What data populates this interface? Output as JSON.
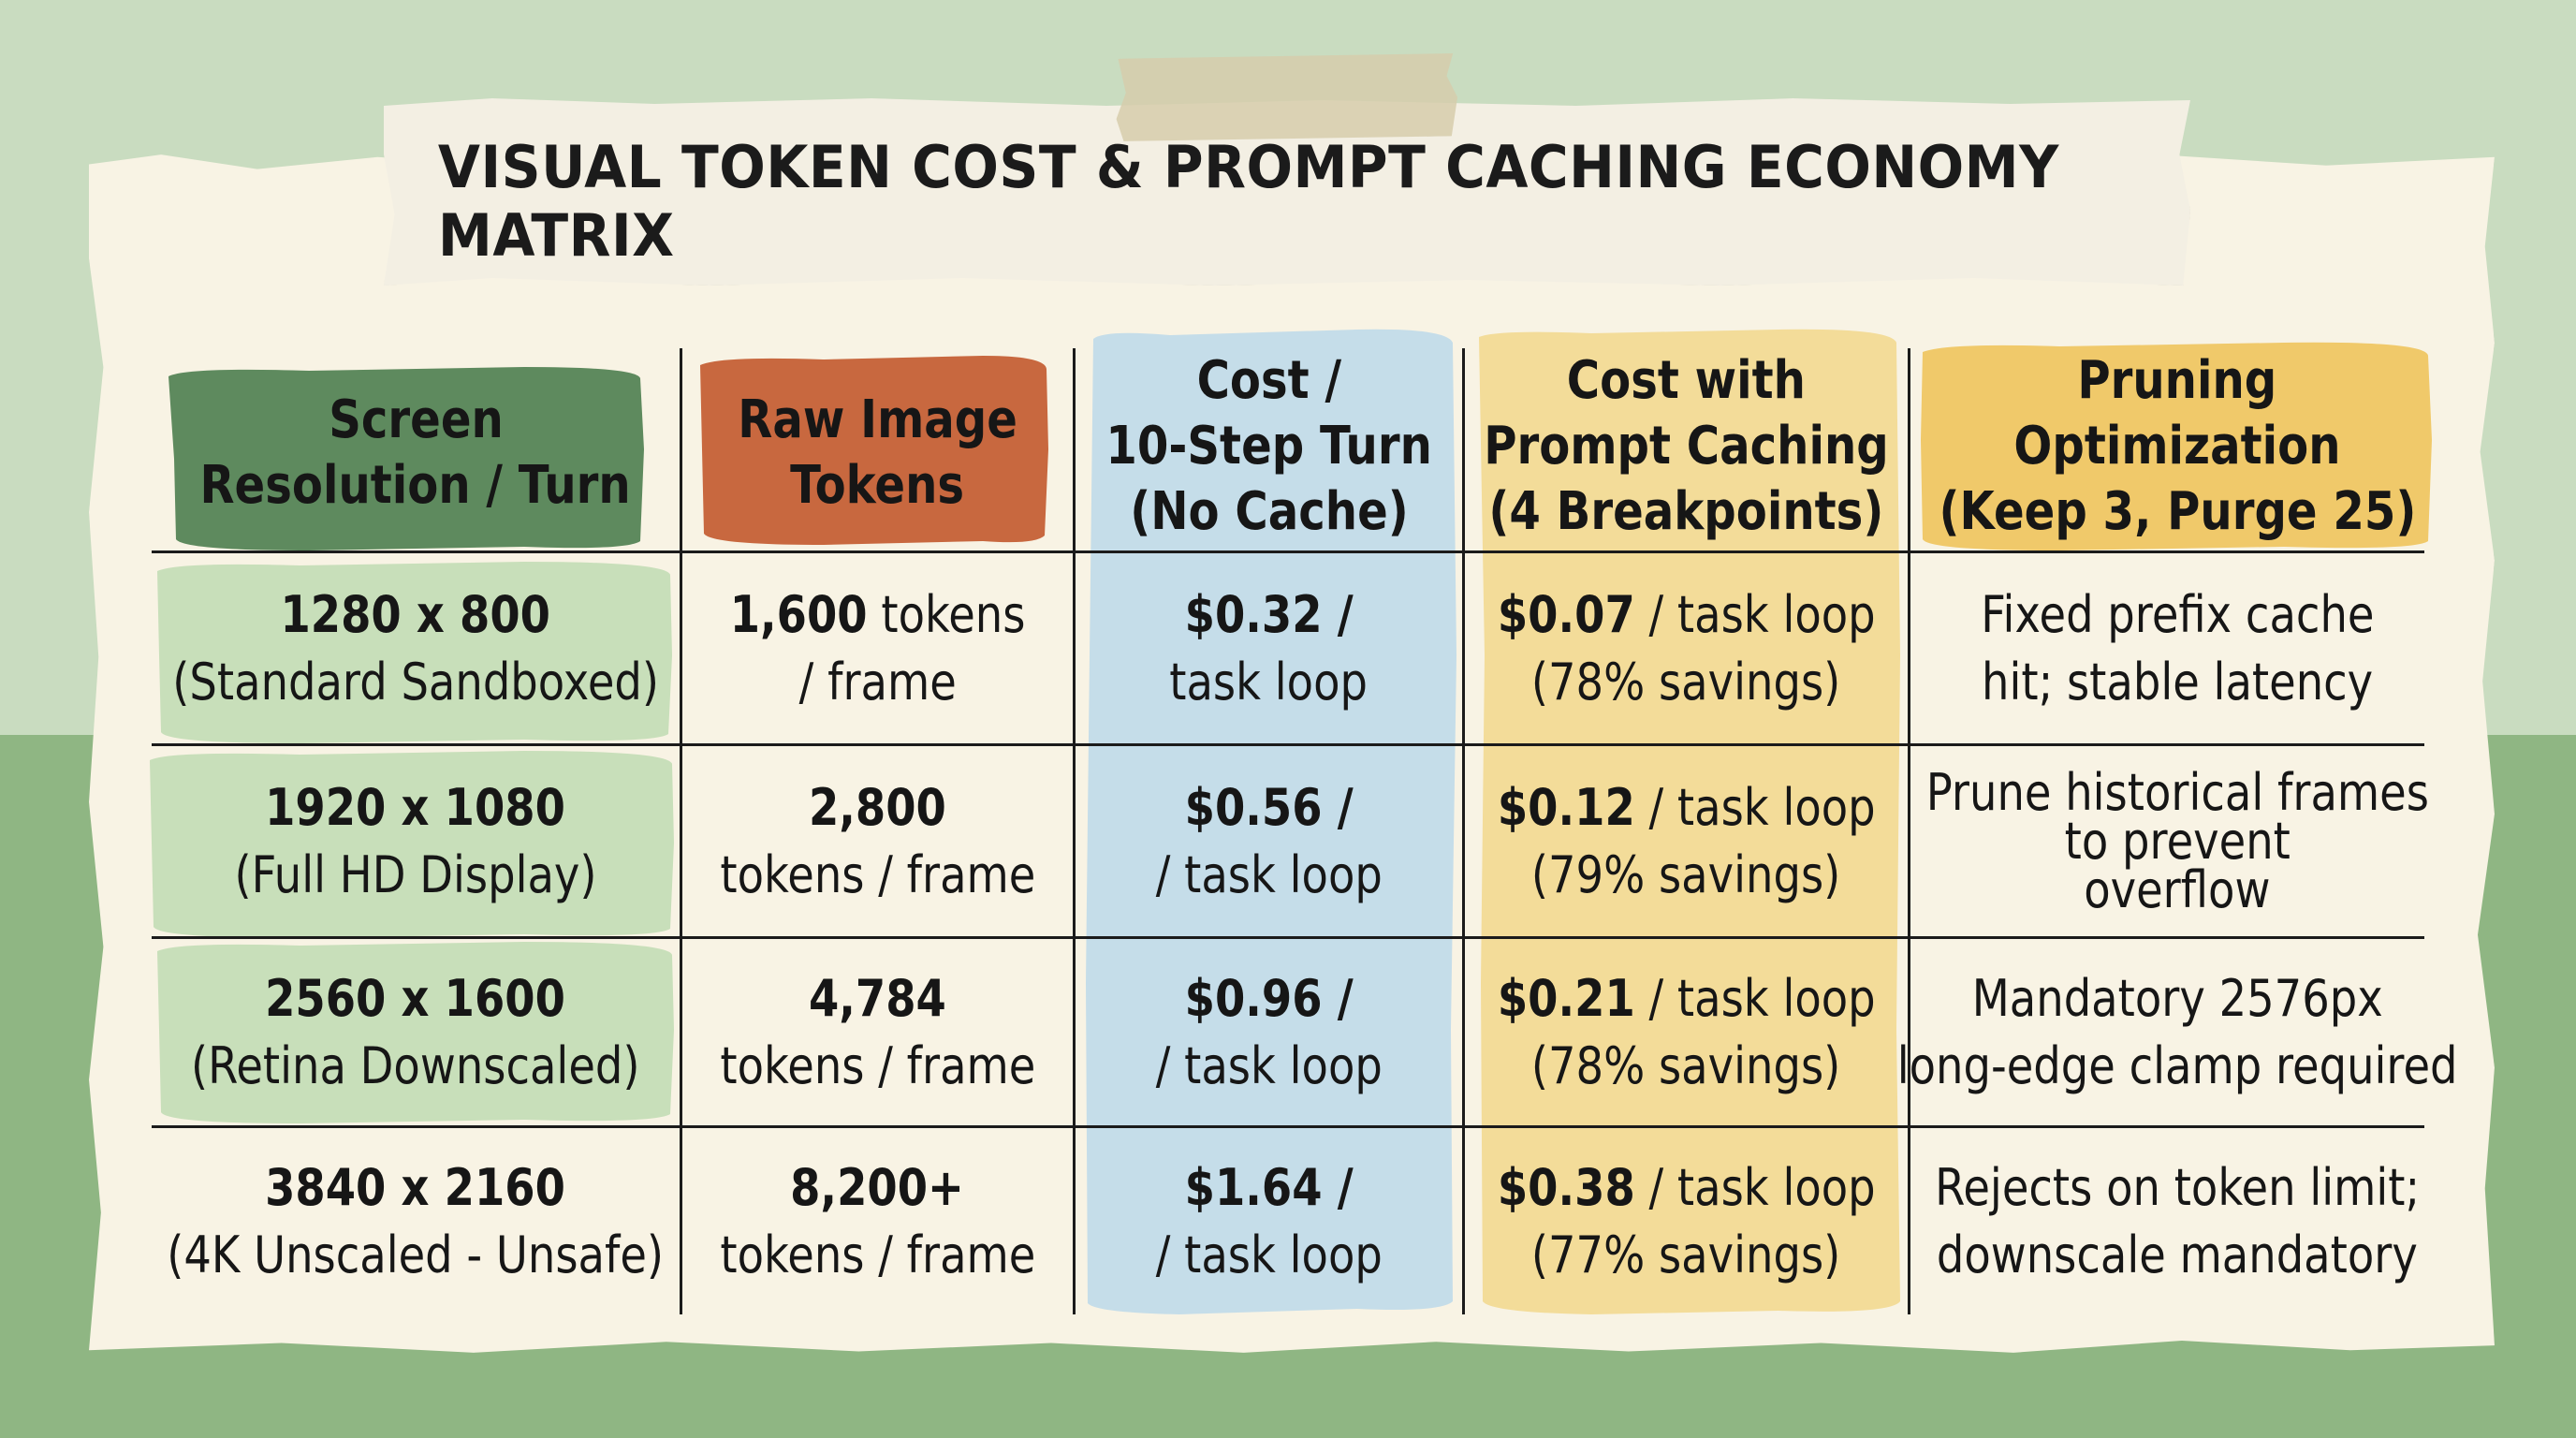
{
  "title": "VISUAL TOKEN COST & PROMPT CACHING ECONOMY MATRIX",
  "colors": {
    "background_top": "#c9dcc0",
    "background_bottom": "#8fb683",
    "paper": "#f8f3e4",
    "header_green": "#5e8a5e",
    "header_orange": "#c8683f",
    "column_blue": "#c5dde9",
    "column_yellow": "#f3dc99",
    "header_yellow": "#f0c96a",
    "row_green": "#c8dfba"
  },
  "headers": [
    {
      "lines": [
        "Screen",
        "Resolution / Turn"
      ]
    },
    {
      "lines": [
        "Raw Image",
        "Tokens"
      ]
    },
    {
      "lines": [
        "Cost /",
        "10-Step Turn",
        "(No Cache)"
      ]
    },
    {
      "lines": [
        "Cost with",
        "Prompt Caching",
        "(4 Breakpoints)"
      ]
    },
    {
      "lines": [
        "Pruning",
        "Optimization",
        "(Keep 3, Purge 25)"
      ]
    }
  ],
  "rows": [
    {
      "resolution": "1280 x 800",
      "resolution_note": "(Standard Sandboxed)",
      "tokens_bold": "1,600",
      "tokens_line1_rest": " tokens",
      "tokens_line2": "/ frame",
      "cost_bold": "$0.32 /",
      "cost_line2": "task loop",
      "cached_bold": "$0.07",
      "cached_rest": " / task loop",
      "cached_savings": "(78% savings)",
      "pruning_line1": "Fixed prefix cache",
      "pruning_line2": "hit; stable latency",
      "pruning_line3": ""
    },
    {
      "resolution": "1920 x 1080",
      "resolution_note": "(Full HD Display)",
      "tokens_bold": "2,800",
      "tokens_line1_rest": "",
      "tokens_line2": "tokens / frame",
      "cost_bold": "$0.56 /",
      "cost_line2": "/ task loop",
      "cached_bold": "$0.12",
      "cached_rest": " / task loop",
      "cached_savings": "(79% savings)",
      "pruning_line1": "Prune historical frames",
      "pruning_line2": "to prevent",
      "pruning_line3": "overflow"
    },
    {
      "resolution": "2560 x 1600",
      "resolution_note": "(Retina Downscaled)",
      "tokens_bold": "4,784",
      "tokens_line1_rest": "",
      "tokens_line2": "tokens / frame",
      "cost_bold": "$0.96 /",
      "cost_line2": "/ task loop",
      "cached_bold": "$0.21",
      "cached_rest": " / task loop",
      "cached_savings": "(78% savings)",
      "pruning_line1": "Mandatory 2576px",
      "pruning_line2": "long-edge clamp required",
      "pruning_line3": ""
    },
    {
      "resolution": "3840 x 2160",
      "resolution_note": "(4K Unscaled - Unsafe)",
      "tokens_bold": "8,200+",
      "tokens_line1_rest": "",
      "tokens_line2": "tokens / frame",
      "cost_bold": "$1.64 /",
      "cost_line2": "/ task loop",
      "cached_bold": "$0.38",
      "cached_rest": " / task loop",
      "cached_savings": "(77% savings)",
      "pruning_line1": "Rejects on token limit;",
      "pruning_line2": "downscale mandatory",
      "pruning_line3": ""
    }
  ]
}
